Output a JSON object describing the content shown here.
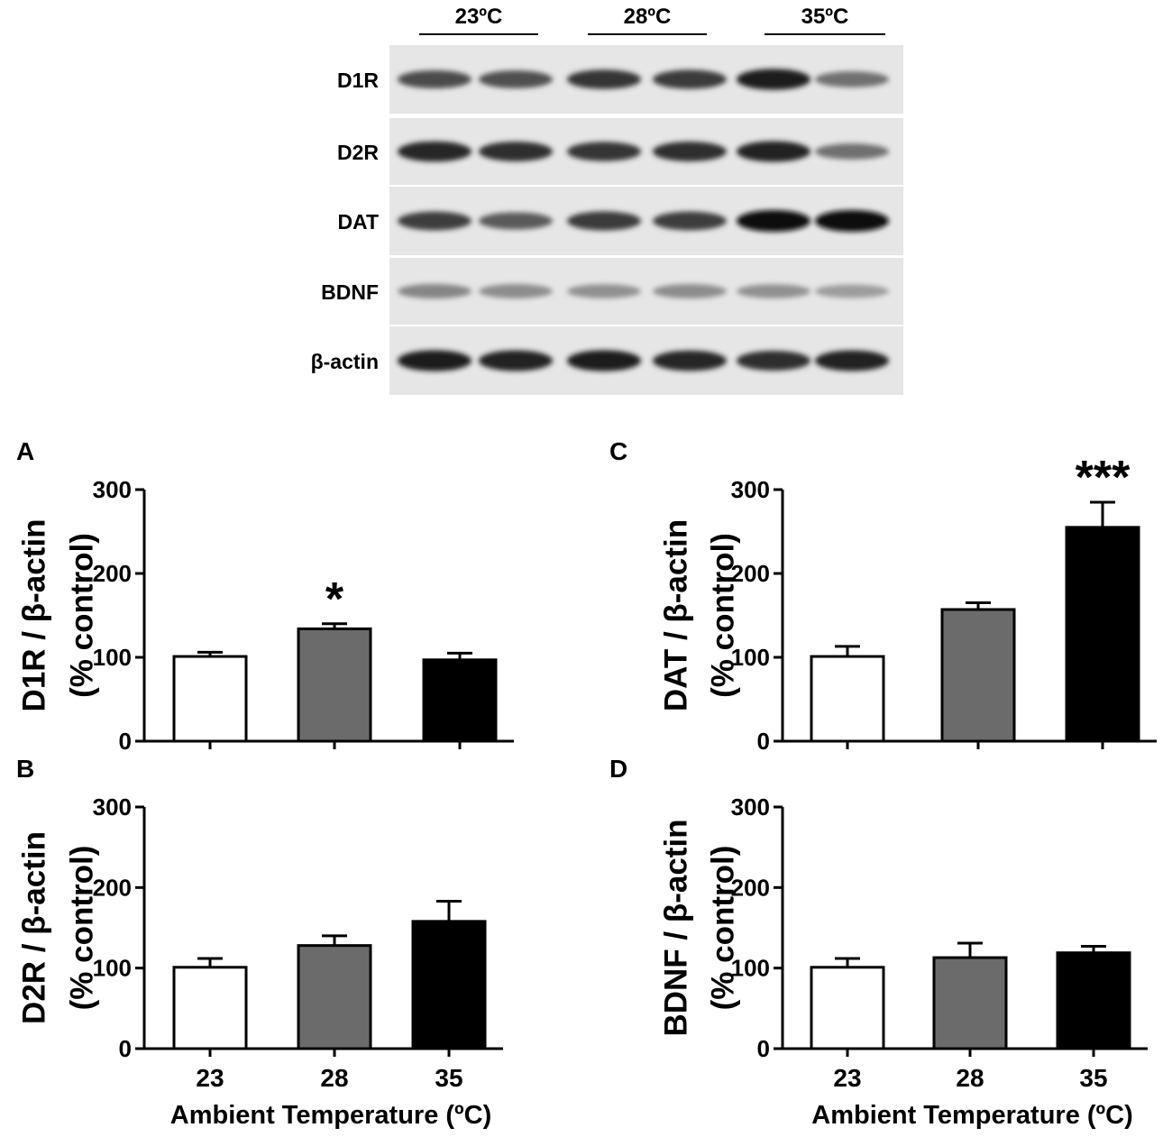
{
  "blot": {
    "temperatures": [
      "23ºC",
      "28ºC",
      "35ºC"
    ],
    "bands": [
      {
        "label": "D1R",
        "intensity": [
          0.72,
          0.7,
          0.82,
          0.8,
          0.95,
          0.55
        ]
      },
      {
        "label": "D2R",
        "intensity": [
          0.9,
          0.85,
          0.82,
          0.86,
          0.92,
          0.55
        ]
      },
      {
        "label": "DAT",
        "intensity": [
          0.78,
          0.65,
          0.8,
          0.78,
          1.0,
          1.0
        ]
      },
      {
        "label": "BDNF",
        "intensity": [
          0.45,
          0.42,
          0.4,
          0.42,
          0.4,
          0.35
        ]
      },
      {
        "label": "β-actin",
        "intensity": [
          0.95,
          0.92,
          0.95,
          0.9,
          0.85,
          0.92
        ]
      }
    ]
  },
  "chart_data": [
    {
      "panel": "A",
      "type": "bar",
      "ylabel_line1": "D1R / β-actin",
      "ylabel_line2": "(% control)",
      "categories": [
        "23",
        "28",
        "35"
      ],
      "values": [
        101,
        134,
        97
      ],
      "errors": [
        5,
        6,
        8
      ],
      "colors": [
        "#ffffff",
        "#6b6b6b",
        "#000000"
      ],
      "significance": [
        "",
        "*",
        ""
      ],
      "ylim": [
        0,
        300
      ],
      "yticks": [
        "0",
        "100",
        "200",
        "300"
      ],
      "show_x_labels": false
    },
    {
      "panel": "C",
      "type": "bar",
      "ylabel_line1": "DAT / β-actin",
      "ylabel_line2": "(% control)",
      "categories": [
        "23",
        "28",
        "35"
      ],
      "values": [
        101,
        157,
        255
      ],
      "errors": [
        12,
        8,
        30
      ],
      "colors": [
        "#ffffff",
        "#6b6b6b",
        "#000000"
      ],
      "significance": [
        "",
        "",
        "***"
      ],
      "ylim": [
        0,
        300
      ],
      "yticks": [
        "0",
        "100",
        "200",
        "300"
      ],
      "show_x_labels": false
    },
    {
      "panel": "B",
      "type": "bar",
      "ylabel_line1": "D2R / β-actin",
      "ylabel_line2": "(% control)",
      "categories": [
        "23",
        "28",
        "35"
      ],
      "values": [
        101,
        128,
        158
      ],
      "errors": [
        11,
        12,
        25
      ],
      "colors": [
        "#ffffff",
        "#6b6b6b",
        "#000000"
      ],
      "significance": [
        "",
        "",
        ""
      ],
      "ylim": [
        0,
        300
      ],
      "yticks": [
        "0",
        "100",
        "200",
        "300"
      ],
      "show_x_labels": true,
      "xlabel": "Ambient Temperature (ºC)"
    },
    {
      "panel": "D",
      "type": "bar",
      "ylabel_line1": "BDNF / β-actin",
      "ylabel_line2": "(% control)",
      "categories": [
        "23",
        "28",
        "35"
      ],
      "values": [
        101,
        113,
        119
      ],
      "errors": [
        11,
        18,
        8
      ],
      "colors": [
        "#ffffff",
        "#6b6b6b",
        "#000000"
      ],
      "significance": [
        "",
        "",
        ""
      ],
      "ylim": [
        0,
        300
      ],
      "yticks": [
        "0",
        "100",
        "200",
        "300"
      ],
      "show_x_labels": true,
      "xlabel": "Ambient Temperature (ºC)"
    }
  ]
}
